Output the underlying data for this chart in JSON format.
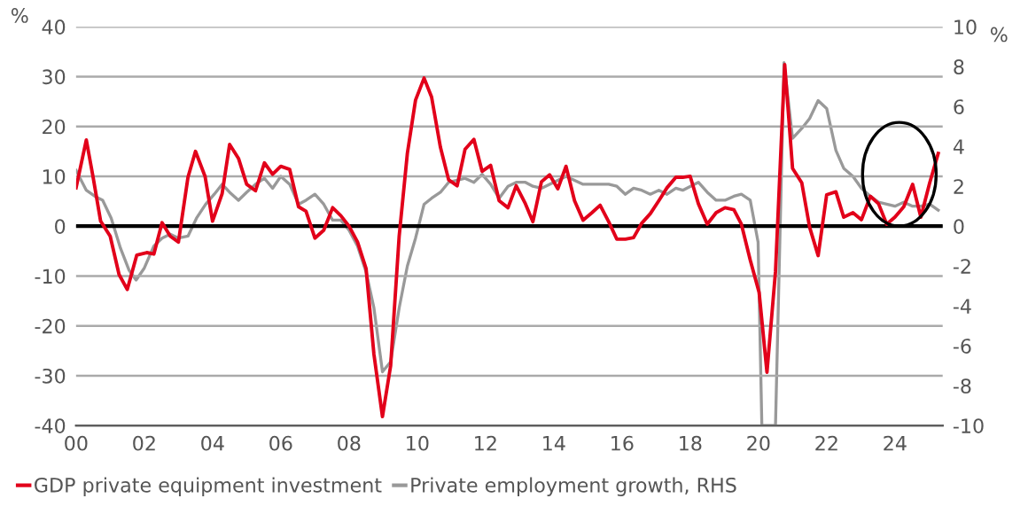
{
  "chart_data": {
    "type": "line",
    "ylabel": "%",
    "y2label": "%",
    "series": [
      {
        "name": "GDP private equipment investment",
        "color": "#e2001a",
        "axis": "y",
        "x": [
          2000.0,
          2000.3,
          2000.5,
          2000.72,
          2001.0,
          2001.26,
          2001.5,
          2001.78,
          2002.07,
          2002.28,
          2002.52,
          2002.76,
          2003.0,
          2003.28,
          2003.5,
          2003.78,
          2004.0,
          2004.28,
          2004.5,
          2004.76,
          2005.0,
          2005.26,
          2005.52,
          2005.76,
          2006.0,
          2006.26,
          2006.52,
          2006.74,
          2007.0,
          2007.26,
          2007.52,
          2007.76,
          2008.0,
          2008.25,
          2008.5,
          2008.73,
          2008.98,
          2009.22,
          2009.47,
          2009.71,
          2009.95,
          2010.2,
          2010.42,
          2010.68,
          2010.92,
          2011.17,
          2011.4,
          2011.66,
          2011.9,
          2012.15,
          2012.4,
          2012.66,
          2012.9,
          2013.17,
          2013.39,
          2013.64,
          2013.88,
          2014.12,
          2014.36,
          2014.61,
          2014.86,
          2015.12,
          2015.36,
          2015.61,
          2015.85,
          2016.1,
          2016.34,
          2016.58,
          2016.83,
          2017.08,
          2017.32,
          2017.58,
          2017.78,
          2018.0,
          2018.24,
          2018.5,
          2018.76,
          2019.02,
          2019.28,
          2019.5,
          2019.76,
          2020.02,
          2020.25,
          2020.5,
          2020.77,
          2021.0,
          2021.27,
          2021.5,
          2021.75,
          2022.0,
          2022.27,
          2022.5,
          2022.77,
          2023.02,
          2023.28,
          2023.52,
          2023.76,
          2024.0,
          2024.26,
          2024.52,
          2024.76,
          2025.02,
          2025.27
        ],
        "values": [
          7.7,
          17.3,
          9.8,
          1,
          -2,
          -9.7,
          -12.7,
          -5.8,
          -5.3,
          -5.6,
          0.7,
          -2,
          -3.2,
          9.8,
          15,
          10,
          1,
          6.5,
          16.4,
          13.6,
          8.4,
          7.1,
          12.7,
          10.4,
          12,
          11.4,
          3.9,
          3,
          -2.4,
          -0.8,
          3.7,
          2.1,
          0,
          -3.2,
          -8.5,
          -25.7,
          -38.2,
          -28,
          -2,
          14.6,
          25.3,
          29.7,
          25.9,
          15.8,
          9.3,
          8.1,
          15.4,
          17.4,
          11,
          12.2,
          5.1,
          3.7,
          8.1,
          4.5,
          0.9,
          8.9,
          10.3,
          7.5,
          12,
          5.1,
          1.2,
          2.7,
          4.2,
          0.9,
          -2.6,
          -2.6,
          -2.3,
          0.6,
          2.5,
          5.1,
          7.7,
          9.8,
          9.8,
          10,
          4.5,
          0.4,
          2.7,
          3.7,
          3.3,
          0.4,
          -6.8,
          -13.3,
          -29.3,
          -9.1,
          32.4,
          11.6,
          8.7,
          -0.2,
          -5.9,
          6.3,
          6.9,
          1.8,
          2.7,
          1.3,
          6,
          4.5,
          0.4,
          1.8,
          3.9,
          8.4,
          1.8,
          8.7,
          14.6
        ]
      },
      {
        "name": "Private employment growth, RHS",
        "color": "#999999",
        "axis": "y2",
        "x": [
          2000.0,
          2000.3,
          2000.55,
          2000.78,
          2001.03,
          2001.3,
          2001.55,
          2001.76,
          2002.0,
          2002.28,
          2002.52,
          2002.76,
          2003.0,
          2003.28,
          2003.53,
          2003.8,
          2004.05,
          2004.28,
          2004.5,
          2004.76,
          2005.0,
          2005.26,
          2005.52,
          2005.76,
          2006.0,
          2006.26,
          2006.52,
          2006.74,
          2007.0,
          2007.26,
          2007.52,
          2007.76,
          2008.0,
          2008.25,
          2008.5,
          2008.73,
          2008.98,
          2009.22,
          2009.47,
          2009.71,
          2009.95,
          2010.2,
          2010.42,
          2010.68,
          2010.92,
          2011.17,
          2011.4,
          2011.66,
          2011.9,
          2012.15,
          2012.4,
          2012.66,
          2012.9,
          2013.17,
          2013.39,
          2013.64,
          2013.88,
          2014.12,
          2014.36,
          2014.61,
          2014.86,
          2015.61,
          2015.85,
          2016.1,
          2016.34,
          2016.58,
          2016.83,
          2017.08,
          2017.32,
          2017.58,
          2017.78,
          2018.24,
          2018.5,
          2018.76,
          2019.02,
          2019.28,
          2019.5,
          2019.76,
          2019.99,
          2020.1,
          2020.5,
          2020.75,
          2021.0,
          2021.27,
          2021.5,
          2021.75,
          2022.0,
          2022.27,
          2022.5,
          2022.77,
          2023.02,
          2023.28,
          2023.52,
          2023.76,
          2024.0,
          2024.26,
          2024.52,
          2024.76,
          2025.02,
          2025.27
        ],
        "values": [
          2.8,
          1.8,
          1.5,
          1.3,
          0.4,
          -1.1,
          -2.2,
          -2.7,
          -2.1,
          -1,
          -0.6,
          -0.4,
          -0.6,
          -0.5,
          0.4,
          1.1,
          1.6,
          2.1,
          1.7,
          1.3,
          1.7,
          2.1,
          2.4,
          1.9,
          2.5,
          2.1,
          1.1,
          1.3,
          1.6,
          1.1,
          0.3,
          0.3,
          -0.2,
          -1,
          -2.3,
          -4.1,
          -7.3,
          -6.8,
          -4.1,
          -2,
          -0.6,
          1.1,
          1.4,
          1.7,
          2.2,
          2.3,
          2.4,
          2.2,
          2.6,
          2.1,
          1.4,
          2,
          2.2,
          2.2,
          2,
          1.9,
          2.1,
          2.3,
          2.5,
          2.3,
          2.1,
          2.1,
          2,
          1.6,
          1.9,
          1.8,
          1.6,
          1.8,
          1.6,
          1.9,
          1.8,
          2.2,
          1.7,
          1.3,
          1.3,
          1.5,
          1.6,
          1.3,
          -0.8,
          -10,
          -10,
          8.2,
          4.4,
          4.9,
          5.4,
          6.3,
          5.9,
          3.8,
          2.9,
          2.5,
          1.9,
          1.5,
          1.2,
          1.1,
          1,
          1.2,
          1,
          1,
          1.1,
          0.8
        ]
      }
    ],
    "xlim": [
      2000,
      2025.4
    ],
    "xticks": [
      {
        "value": 2000,
        "label": "00"
      },
      {
        "value": 2002,
        "label": "02"
      },
      {
        "value": 2004,
        "label": "04"
      },
      {
        "value": 2006,
        "label": "06"
      },
      {
        "value": 2008,
        "label": "08"
      },
      {
        "value": 2010,
        "label": "10"
      },
      {
        "value": 2012,
        "label": "12"
      },
      {
        "value": 2014,
        "label": "14"
      },
      {
        "value": 2016,
        "label": "16"
      },
      {
        "value": 2018,
        "label": "18"
      },
      {
        "value": 2020,
        "label": "20"
      },
      {
        "value": 2022,
        "label": "22"
      },
      {
        "value": 2024,
        "label": "24"
      }
    ],
    "ylim": [
      -40,
      40
    ],
    "yticks": [
      -40,
      -30,
      -20,
      -10,
      0,
      10,
      20,
      30,
      40
    ],
    "y2lim": [
      -10,
      10
    ],
    "y2ticks": [
      -10,
      -8,
      -6,
      -4,
      -2,
      0,
      2,
      4,
      6,
      8,
      10
    ],
    "ref_lines": [
      {
        "axis": "y",
        "value": 0,
        "color": "#000000"
      }
    ],
    "grid": "y",
    "legend": "bottom",
    "line_style": "solid",
    "marker": "none"
  }
}
